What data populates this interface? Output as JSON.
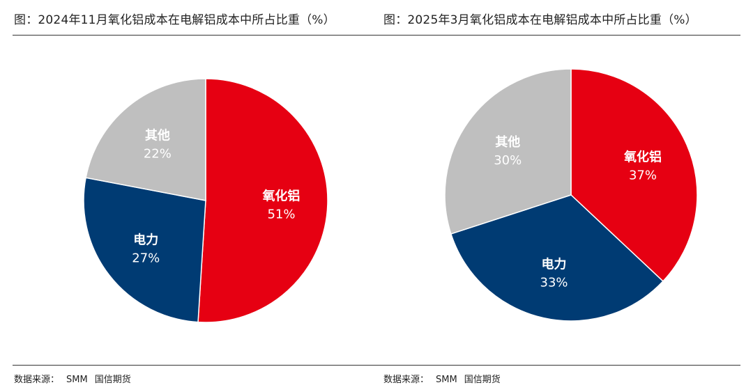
{
  "chart_data": [
    {
      "type": "pie",
      "title": "图：2024年11月氧化铝成本在电解铝成本中所占比重（%）",
      "slices": [
        {
          "label": "氧化铝",
          "value": 51,
          "color": "#e60012"
        },
        {
          "label": "电力",
          "value": 27,
          "color": "#003b73"
        },
        {
          "label": "其他",
          "value": 22,
          "color": "#bfbfbf"
        }
      ],
      "source": {
        "prefix": "数据来源：",
        "names": [
          "SMM",
          "国信期货"
        ]
      }
    },
    {
      "type": "pie",
      "title": "图：2025年3月氧化铝成本在电解铝成本中所占比重（%）",
      "slices": [
        {
          "label": "氧化铝",
          "value": 37,
          "color": "#e60012"
        },
        {
          "label": "电力",
          "value": 33,
          "color": "#003b73"
        },
        {
          "label": "其他",
          "value": 30,
          "color": "#bfbfbf"
        }
      ],
      "source": {
        "prefix": "数据来源：",
        "names": [
          "SMM",
          "国信期货"
        ]
      }
    }
  ]
}
